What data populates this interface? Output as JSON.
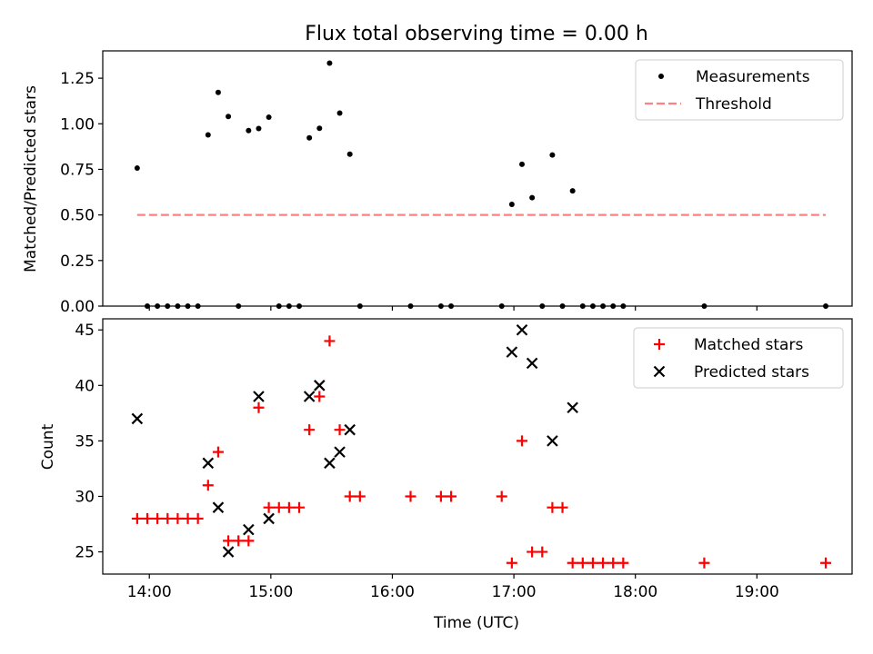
{
  "chart_data": {
    "title": "Flux total observing time = 0.00 h",
    "xlabel": "Time (UTC)",
    "x_ticks": [
      "14:00",
      "15:00",
      "16:00",
      "17:00",
      "18:00",
      "19:00"
    ],
    "xlim": [
      "13:37",
      "19:47"
    ],
    "panels": [
      {
        "type": "scatter",
        "ylabel": "Matched/Predicted stars",
        "ylim": [
          0,
          1.4
        ],
        "y_ticks": [
          "0.00",
          "0.25",
          "0.50",
          "0.75",
          "1.00",
          "1.25"
        ],
        "legend_position": "top-right",
        "series": [
          {
            "name": "Measurements",
            "marker": "dot",
            "color": "#000000",
            "points": [
              [
                "13:54",
                0.757
              ],
              [
                "13:59",
                0.0
              ],
              [
                "14:04",
                0.0
              ],
              [
                "14:09",
                0.0
              ],
              [
                "14:14",
                0.0
              ],
              [
                "14:19",
                0.0
              ],
              [
                "14:24",
                0.0
              ],
              [
                "14:29",
                0.939
              ],
              [
                "14:34",
                1.172
              ],
              [
                "14:39",
                1.04
              ],
              [
                "14:44",
                0.0
              ],
              [
                "14:49",
                0.963
              ],
              [
                "14:54",
                0.974
              ],
              [
                "14:59",
                1.036
              ],
              [
                "15:04",
                0.0
              ],
              [
                "15:09",
                0.0
              ],
              [
                "15:14",
                0.0
              ],
              [
                "15:19",
                0.923
              ],
              [
                "15:24",
                0.975
              ],
              [
                "15:29",
                1.333
              ],
              [
                "15:34",
                1.059
              ],
              [
                "15:39",
                0.833
              ],
              [
                "15:44",
                0.0
              ],
              [
                "16:09",
                0.0
              ],
              [
                "16:24",
                0.0
              ],
              [
                "16:29",
                0.0
              ],
              [
                "16:54",
                0.0
              ],
              [
                "16:59",
                0.558
              ],
              [
                "17:04",
                0.778
              ],
              [
                "17:09",
                0.595
              ],
              [
                "17:14",
                0.0
              ],
              [
                "17:19",
                0.829
              ],
              [
                "17:24",
                0.0
              ],
              [
                "17:29",
                0.632
              ],
              [
                "17:34",
                0.0
              ],
              [
                "17:39",
                0.0
              ],
              [
                "17:44",
                0.0
              ],
              [
                "17:49",
                0.0
              ],
              [
                "17:54",
                0.0
              ],
              [
                "18:34",
                0.0
              ],
              [
                "19:34",
                0.0
              ]
            ]
          },
          {
            "name": "Threshold",
            "marker": "dashed-line",
            "color": "#ff8080",
            "points": [
              [
                "13:54",
                0.5
              ],
              [
                "19:34",
                0.5
              ]
            ]
          }
        ]
      },
      {
        "type": "scatter",
        "ylabel": "Count",
        "ylim": [
          23,
          46
        ],
        "y_ticks": [
          "25",
          "30",
          "35",
          "40",
          "45"
        ],
        "legend_position": "top-right",
        "series": [
          {
            "name": "Matched stars",
            "marker": "plus",
            "color": "#ff0000",
            "points": [
              [
                "13:54",
                28
              ],
              [
                "13:59",
                28
              ],
              [
                "14:04",
                28
              ],
              [
                "14:09",
                28
              ],
              [
                "14:14",
                28
              ],
              [
                "14:19",
                28
              ],
              [
                "14:24",
                28
              ],
              [
                "14:29",
                31
              ],
              [
                "14:34",
                34
              ],
              [
                "14:39",
                26
              ],
              [
                "14:44",
                26
              ],
              [
                "14:49",
                26
              ],
              [
                "14:54",
                38
              ],
              [
                "14:59",
                29
              ],
              [
                "15:04",
                29
              ],
              [
                "15:09",
                29
              ],
              [
                "15:14",
                29
              ],
              [
                "15:19",
                36
              ],
              [
                "15:24",
                39
              ],
              [
                "15:29",
                44
              ],
              [
                "15:34",
                36
              ],
              [
                "15:39",
                30
              ],
              [
                "15:44",
                30
              ],
              [
                "16:09",
                30
              ],
              [
                "16:24",
                30
              ],
              [
                "16:29",
                30
              ],
              [
                "16:54",
                30
              ],
              [
                "16:59",
                24
              ],
              [
                "17:04",
                35
              ],
              [
                "17:09",
                25
              ],
              [
                "17:14",
                25
              ],
              [
                "17:19",
                29
              ],
              [
                "17:24",
                29
              ],
              [
                "17:29",
                24
              ],
              [
                "17:34",
                24
              ],
              [
                "17:39",
                24
              ],
              [
                "17:44",
                24
              ],
              [
                "17:49",
                24
              ],
              [
                "17:54",
                24
              ],
              [
                "18:34",
                24
              ],
              [
                "19:34",
                24
              ]
            ]
          },
          {
            "name": "Predicted stars",
            "marker": "x",
            "color": "#000000",
            "points": [
              [
                "13:54",
                37
              ],
              [
                "14:29",
                33
              ],
              [
                "14:34",
                29
              ],
              [
                "14:39",
                25
              ],
              [
                "14:49",
                27
              ],
              [
                "14:54",
                39
              ],
              [
                "14:59",
                28
              ],
              [
                "15:19",
                39
              ],
              [
                "15:24",
                40
              ],
              [
                "15:29",
                33
              ],
              [
                "15:34",
                34
              ],
              [
                "15:39",
                36
              ],
              [
                "16:59",
                43
              ],
              [
                "17:04",
                45
              ],
              [
                "17:09",
                42
              ],
              [
                "17:19",
                35
              ],
              [
                "17:29",
                38
              ]
            ]
          }
        ]
      }
    ]
  }
}
